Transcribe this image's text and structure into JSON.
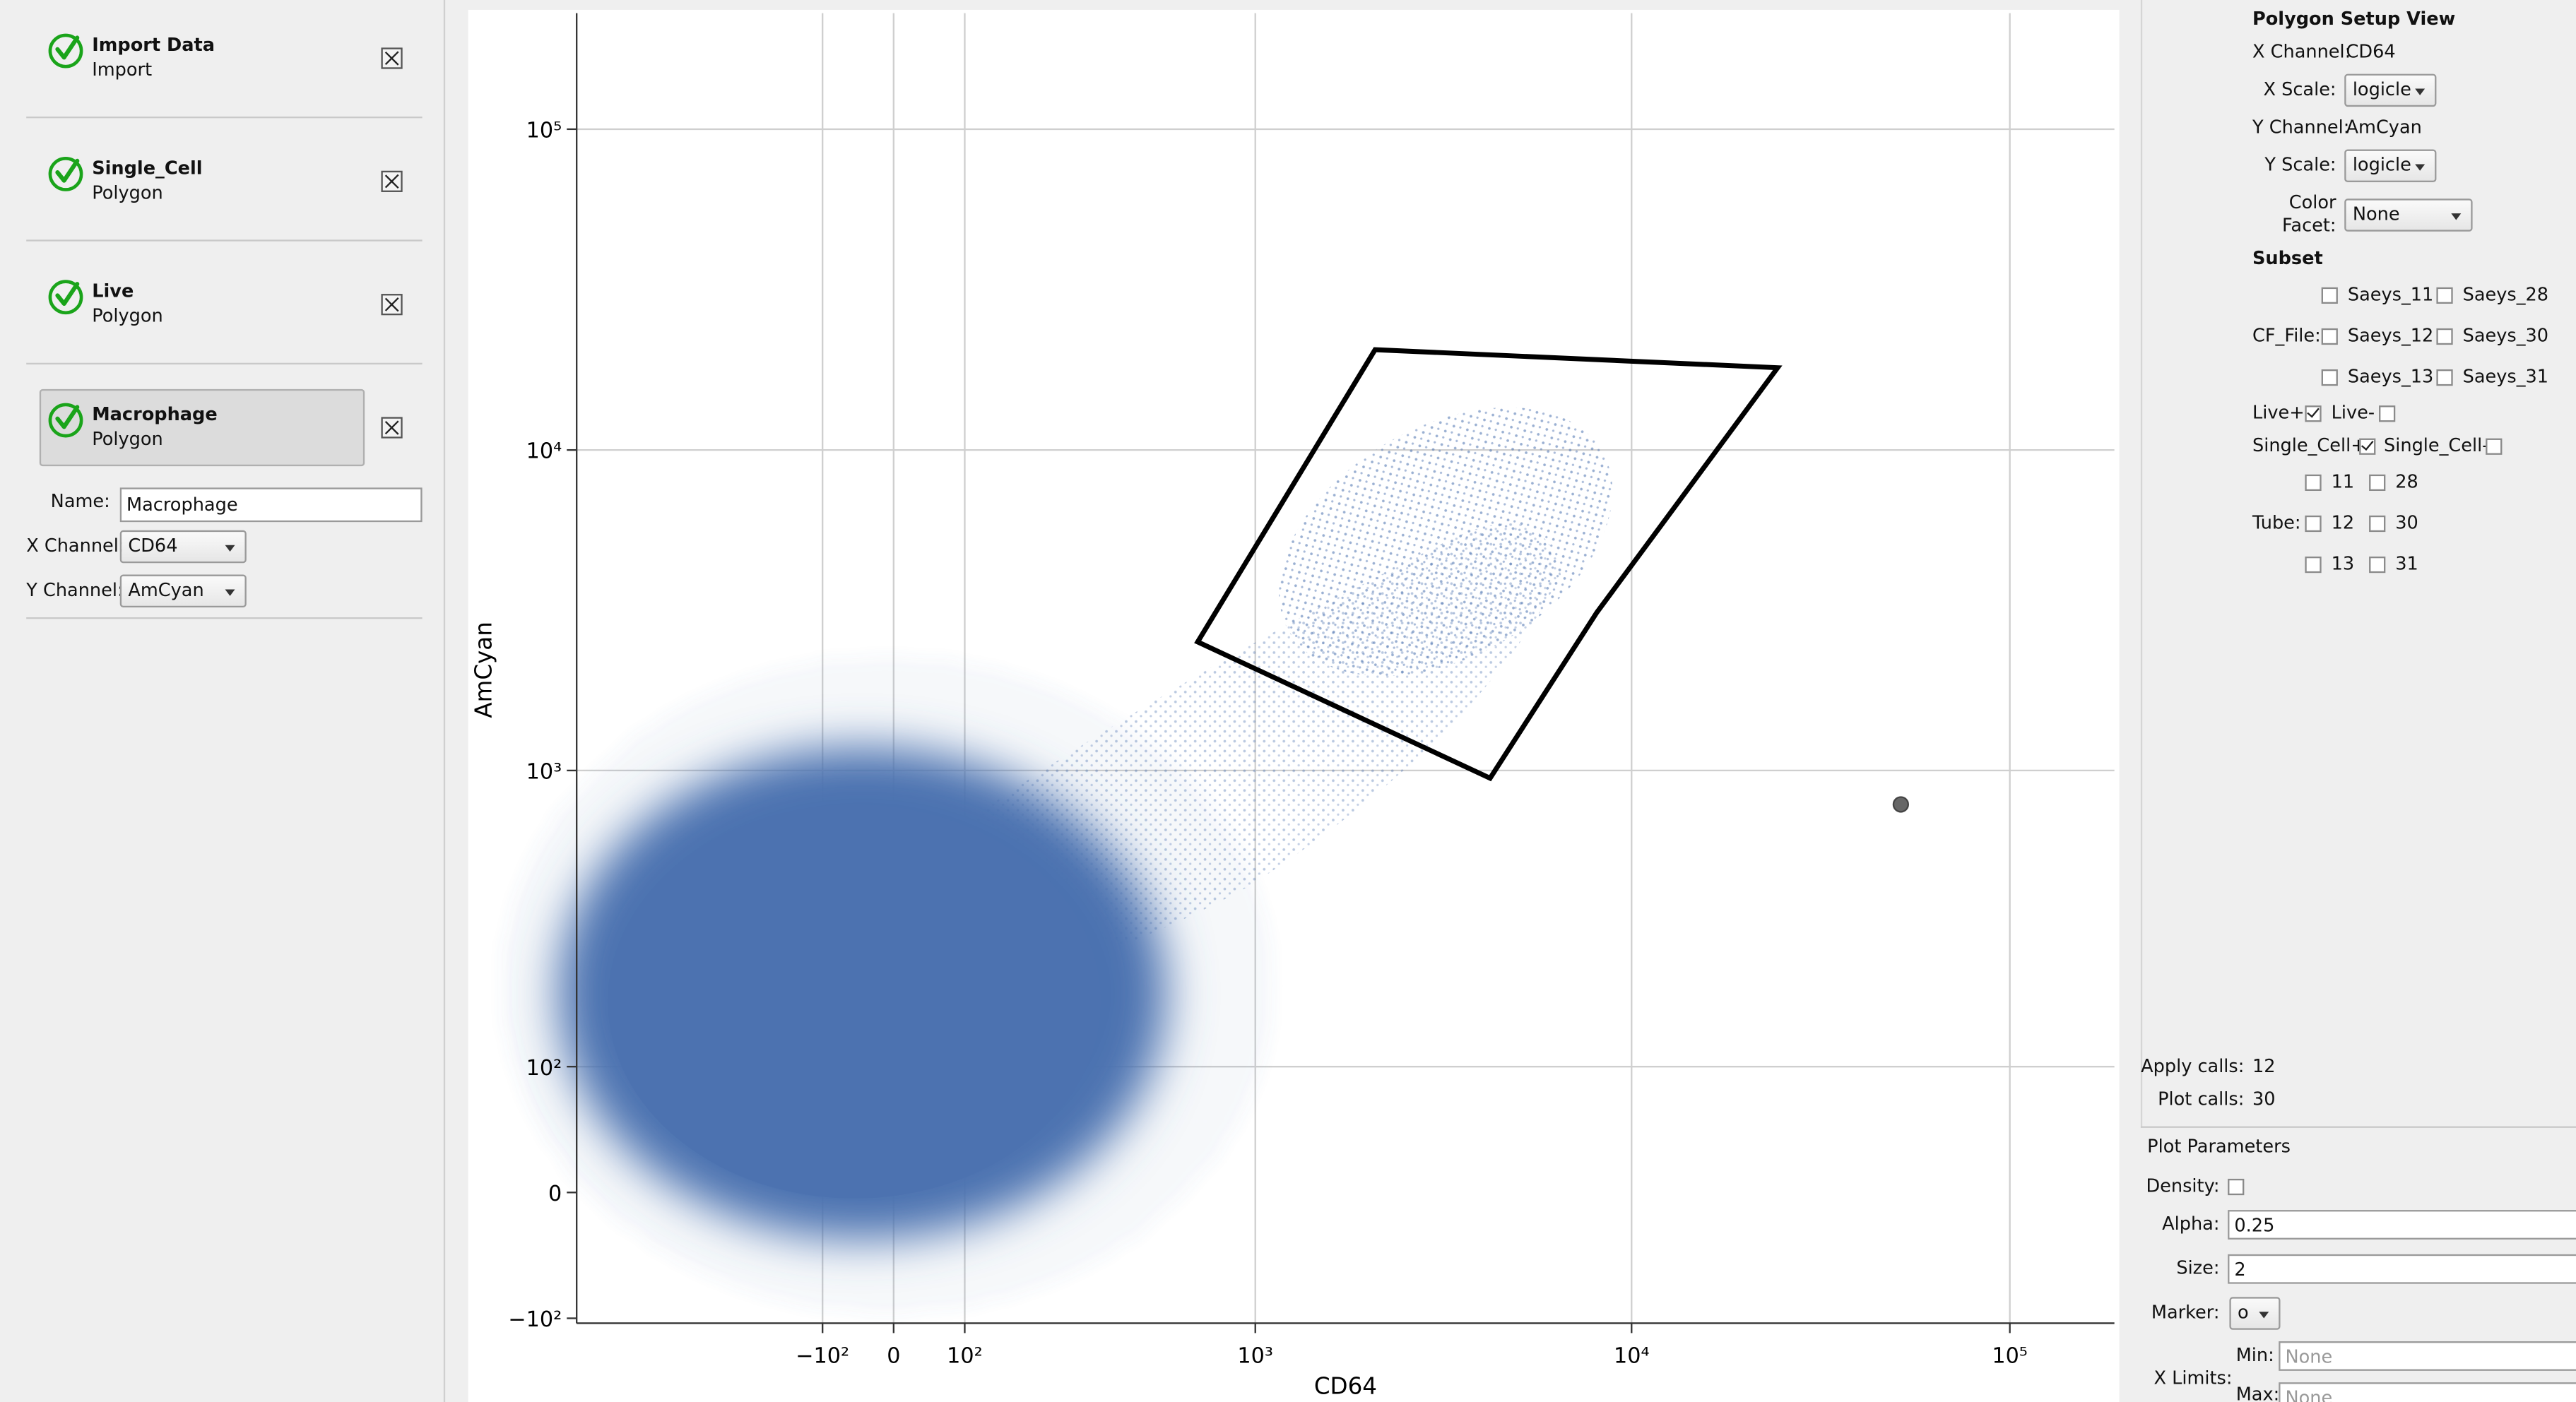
{
  "workflow": {
    "steps": [
      {
        "title": "Import Data",
        "subtitle": "Import"
      },
      {
        "title": "Single_Cell",
        "subtitle": "Polygon"
      },
      {
        "title": "Live",
        "subtitle": "Polygon"
      },
      {
        "title": "Macrophage",
        "subtitle": "Polygon"
      }
    ],
    "name_label": "Name:",
    "name_value": "Macrophage",
    "x_channel_label": "X Channel:",
    "x_channel": "CD64",
    "y_channel_label": "Y Channel:",
    "y_channel": "AmCyan"
  },
  "plot": {
    "x_label": "CD64",
    "y_label": "AmCyan",
    "xlim": [
      -755,
      189000
    ],
    "ylim": [
      -105,
      230000
    ],
    "xticks": [
      {
        "value": -100,
        "label": "−10²"
      },
      0,
      {
        "value": 100,
        "label": "10²"
      },
      {
        "value": 1000,
        "label": "10³"
      },
      {
        "value": 10000,
        "label": "10⁴"
      },
      {
        "value": 100000,
        "label": "10⁵"
      }
    ],
    "yticks": [
      {
        "value": -100,
        "label": "−10²"
      },
      0,
      {
        "value": 100,
        "label": "10²"
      },
      {
        "value": 1000,
        "label": "10³"
      },
      {
        "value": 10000,
        "label": "10⁴"
      },
      {
        "value": 100000,
        "label": "10⁵"
      }
    ],
    "grid": true,
    "color": "#4c72b0"
  },
  "setup": {
    "title": "Polygon Setup View",
    "x_channel_label": "X Channel:",
    "x_channel": "CD64",
    "x_scale_label": "X Scale:",
    "x_scale": "logicle",
    "y_channel_label": "Y Channel:",
    "y_channel": "AmCyan",
    "y_scale_label": "Y Scale:",
    "y_scale": "logicle",
    "color_facet_label": "Color Facet:",
    "color_facet": "None",
    "subset_title": "Subset",
    "cf_file_label": "CF_File:",
    "cf_files": [
      {
        "name": "Saeys_11",
        "checked": false
      },
      {
        "name": "Saeys_28",
        "checked": false
      },
      {
        "name": "Saeys_12",
        "checked": false
      },
      {
        "name": "Saeys_30",
        "checked": false
      },
      {
        "name": "Saeys_13",
        "checked": false
      },
      {
        "name": "Saeys_31",
        "checked": false
      }
    ],
    "live": [
      {
        "name": "Live+",
        "checked": true
      },
      {
        "name": "Live-",
        "checked": false
      }
    ],
    "single_cell": [
      {
        "name": "Single_Cell+",
        "checked": true
      },
      {
        "name": "Single_Cell-",
        "checked": false
      }
    ],
    "tube_label": "Tube:",
    "tubes": [
      {
        "name": 11,
        "checked": false
      },
      {
        "name": 28,
        "checked": false
      },
      {
        "name": 12,
        "checked": false
      },
      {
        "name": 30,
        "checked": false
      },
      {
        "name": 13,
        "checked": false
      },
      {
        "name": 31,
        "checked": false
      }
    ],
    "apply_calls_label": "Apply calls:",
    "apply_calls": 12,
    "plot_calls_label": "Plot calls:",
    "plot_calls": 30
  },
  "plot_parameters": {
    "title": "Plot Parameters",
    "density_label": "Density:",
    "density": false,
    "alpha_label": "Alpha:",
    "alpha": 0.25,
    "size_label": "Size:",
    "size": 2,
    "marker_label": "Marker:",
    "marker": "o",
    "x_limits_label": "X Limits:",
    "min_label": "Min:",
    "min_placeholder": "None",
    "max_label": "Max:",
    "max_placeholder": "None"
  }
}
